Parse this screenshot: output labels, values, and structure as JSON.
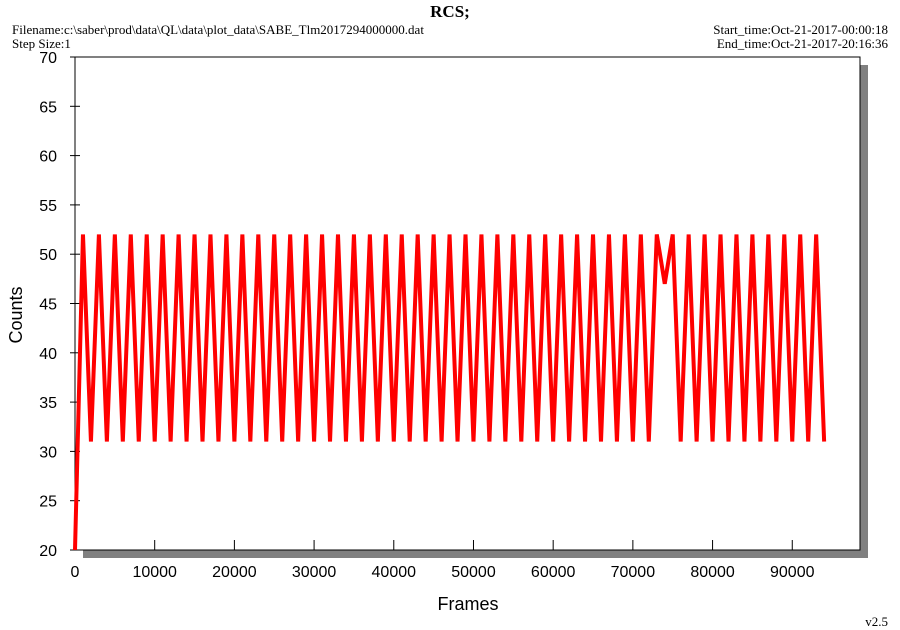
{
  "chart_data": {
    "type": "line",
    "title": "RCS;",
    "filename": "Filename:c:\\saber\\prod\\data\\QL\\data\\plot_data\\SABE_Tlm2017294000000.dat",
    "step_size": "Step Size:1",
    "start_time": "Start_time:Oct-21-2017-00:00:18",
    "end_time": "End_time:Oct-21-2017-20:16:36",
    "version": "v2.5",
    "xlabel": "Frames",
    "ylabel": "Counts",
    "xlim": [
      0,
      98500
    ],
    "ylim": [
      20,
      70
    ],
    "xticks": [
      0,
      10000,
      20000,
      30000,
      40000,
      50000,
      60000,
      70000,
      80000,
      90000
    ],
    "yticks": [
      20,
      25,
      30,
      35,
      40,
      45,
      50,
      55,
      60,
      65,
      70
    ],
    "color": "#ff0000",
    "x": [
      0,
      1000,
      2000,
      3000,
      4000,
      5000,
      6000,
      7000,
      8000,
      9000,
      10000,
      11000,
      12000,
      13000,
      14000,
      15000,
      16000,
      17000,
      18000,
      19000,
      20000,
      21000,
      22000,
      23000,
      24000,
      25000,
      26000,
      27000,
      28000,
      29000,
      30000,
      31000,
      32000,
      33000,
      34000,
      35000,
      36000,
      37000,
      38000,
      39000,
      40000,
      41000,
      42000,
      43000,
      44000,
      45000,
      46000,
      47000,
      48000,
      49000,
      50000,
      51000,
      52000,
      53000,
      54000,
      55000,
      56000,
      57000,
      58000,
      59000,
      60000,
      61000,
      62000,
      63000,
      64000,
      65000,
      66000,
      67000,
      68000,
      69000,
      70000,
      71000,
      72000,
      73000,
      74000,
      75000,
      76000,
      77000,
      78000,
      79000,
      80000,
      81000,
      82000,
      83000,
      84000,
      85000,
      86000,
      87000,
      88000,
      89000,
      90000,
      91000,
      92000,
      93000,
      94000
    ],
    "values": [
      20,
      52,
      31,
      52,
      31,
      52,
      31,
      52,
      31,
      52,
      31,
      52,
      31,
      52,
      31,
      52,
      31,
      52,
      31,
      52,
      31,
      52,
      31,
      52,
      31,
      52,
      31,
      52,
      31,
      52,
      31,
      52,
      31,
      52,
      31,
      52,
      31,
      52,
      31,
      52,
      31,
      52,
      31,
      52,
      31,
      52,
      31,
      52,
      31,
      52,
      31,
      52,
      31,
      52,
      31,
      52,
      31,
      52,
      31,
      52,
      31,
      52,
      31,
      52,
      31,
      52,
      31,
      52,
      31,
      52,
      31,
      52,
      31,
      52,
      47,
      52,
      31,
      52,
      31,
      52,
      31,
      52,
      31,
      52,
      31,
      52,
      31,
      52,
      31,
      52,
      31,
      52,
      31,
      52,
      31
    ]
  }
}
